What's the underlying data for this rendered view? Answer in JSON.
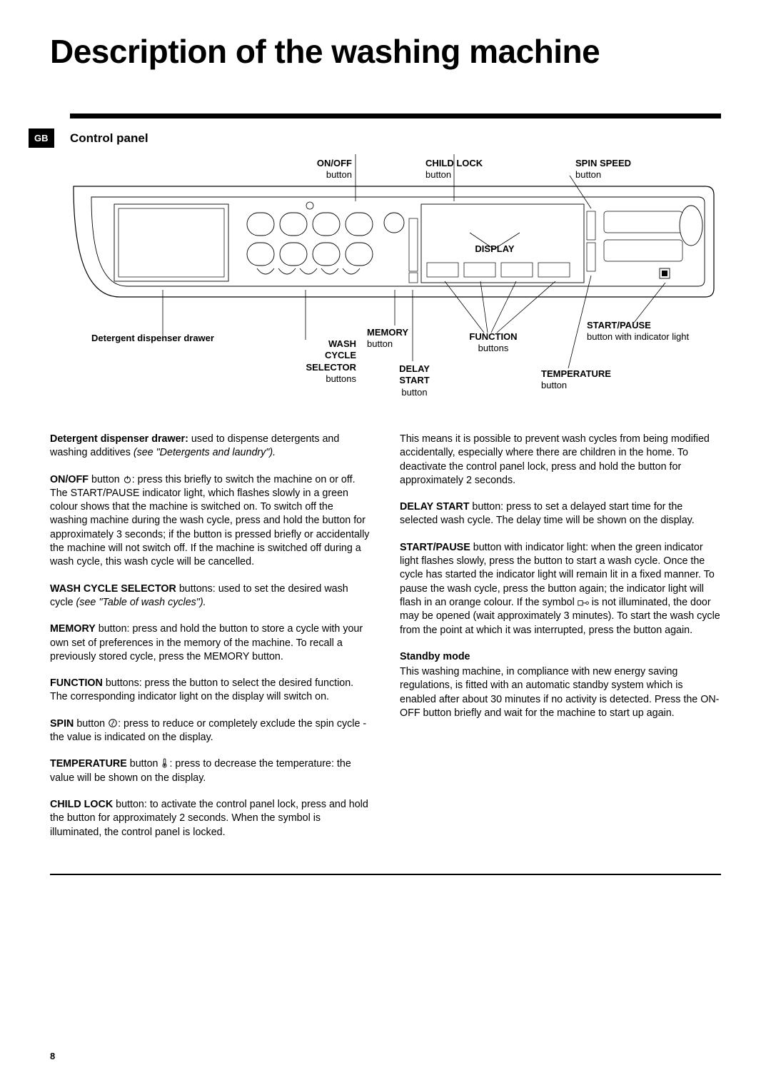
{
  "title": "Description of the washing machine",
  "language_tab": "GB",
  "section_title": "Control panel",
  "page_number": "8",
  "diagram": {
    "labels": {
      "onoff": {
        "bold": "ON/OFF",
        "sub": "button"
      },
      "childlock": {
        "bold": "CHILD LOCK",
        "sub": "button"
      },
      "spinspeed": {
        "bold": "SPIN SPEED",
        "sub": "button"
      },
      "display": {
        "bold": "DISPLAY"
      },
      "detergent_drawer": {
        "bold": "Detergent dispenser drawer"
      },
      "wash_cycle": {
        "bold": "WASH CYCLE SELECTOR",
        "sub": "buttons"
      },
      "memory": {
        "bold": "MEMORY",
        "sub": "button"
      },
      "function": {
        "bold": "FUNCTION",
        "sub": "buttons"
      },
      "delay_start": {
        "bold": "DELAY START",
        "sub": "button"
      },
      "startpause": {
        "bold": "START/PAUSE",
        "sub": "button with indicator light"
      },
      "temperature": {
        "bold": "TEMPERATURE",
        "sub": "button"
      }
    },
    "colors": {
      "stroke": "#000000",
      "fill": "#ffffff",
      "light_fill": "#f6f6f6"
    },
    "styling": {
      "stroke_width_outer": 1.2,
      "stroke_width_inner": 0.9,
      "label_fontsize": 13
    }
  },
  "left_column": [
    {
      "bold": "Detergent dispenser drawer:",
      "text": " used to dispense detergents and washing additives ",
      "ital": "(see \"Detergents and laundry\")."
    },
    {
      "bold": "ON/OFF",
      "text_before": " button ",
      "icon": "power",
      "text": ": press this briefly to switch the machine on or off. The START/PAUSE indicator light, which flashes slowly in a green colour shows that the machine is switched on. To switch off the washing machine during the wash cycle, press and hold the button for approximately 3 seconds; if the button is pressed briefly or accidentally the machine will not switch off. If the machine is switched off during a wash cycle, this wash cycle will be cancelled."
    },
    {
      "bold": "WASH CYCLE SELECTOR",
      "text": " buttons: used to set the desired wash cycle ",
      "ital": "(see \"Table of wash cycles\")."
    },
    {
      "bold": "MEMORY",
      "text": " button: press and hold the button to store a cycle with your own set of preferences in the memory of the machine. To recall a previously stored cycle, press the MEMORY button."
    },
    {
      "bold": "FUNCTION",
      "text": " buttons: press the button to select the desired function. The corresponding indicator light on the display will switch on."
    },
    {
      "bold": "SPIN",
      "text_before": " button ",
      "icon": "spin",
      "text": ": press to reduce or completely exclude the spin cycle - the value is indicated on the display."
    },
    {
      "bold": "TEMPERATURE",
      "text_before": " button ",
      "icon": "temp",
      "text": ": press to decrease the temperature: the value will be shown on the display."
    },
    {
      "bold": "CHILD LOCK",
      "text": " button: to activate the control panel lock, press and hold the button for approximately 2 seconds. When the symbol is illuminated, the control panel is locked."
    }
  ],
  "right_column": [
    {
      "text": "This means it is possible to prevent wash cycles from being modified accidentally, especially where there are children in the home. To deactivate the control panel lock, press and hold the button for approximately 2 seconds."
    },
    {
      "bold": "DELAY START",
      "text": " button: press to set a delayed start time for the selected wash cycle. The delay time will be shown on the display."
    },
    {
      "bold": "START/PAUSE",
      "text_before": " button with indicator light: when the green indicator light flashes slowly, press the button to start a wash cycle. Once the cycle has started the indicator light will remain lit in a fixed manner. To pause the wash cycle, press the button again; the indicator light will flash in an orange colour. If the symbol ",
      "icon": "lock",
      "text": " is not illuminated, the door may be opened (wait approximately 3 minutes). To start the wash cycle from the point at which it was interrupted, press the button again."
    },
    {
      "subhead": "Standby mode",
      "text": "This washing machine, in compliance with new energy saving regulations, is fitted with an automatic standby system which is enabled after about 30 minutes if no activity is detected. Press the ON-OFF button briefly and wait for the machine to start up again."
    }
  ]
}
